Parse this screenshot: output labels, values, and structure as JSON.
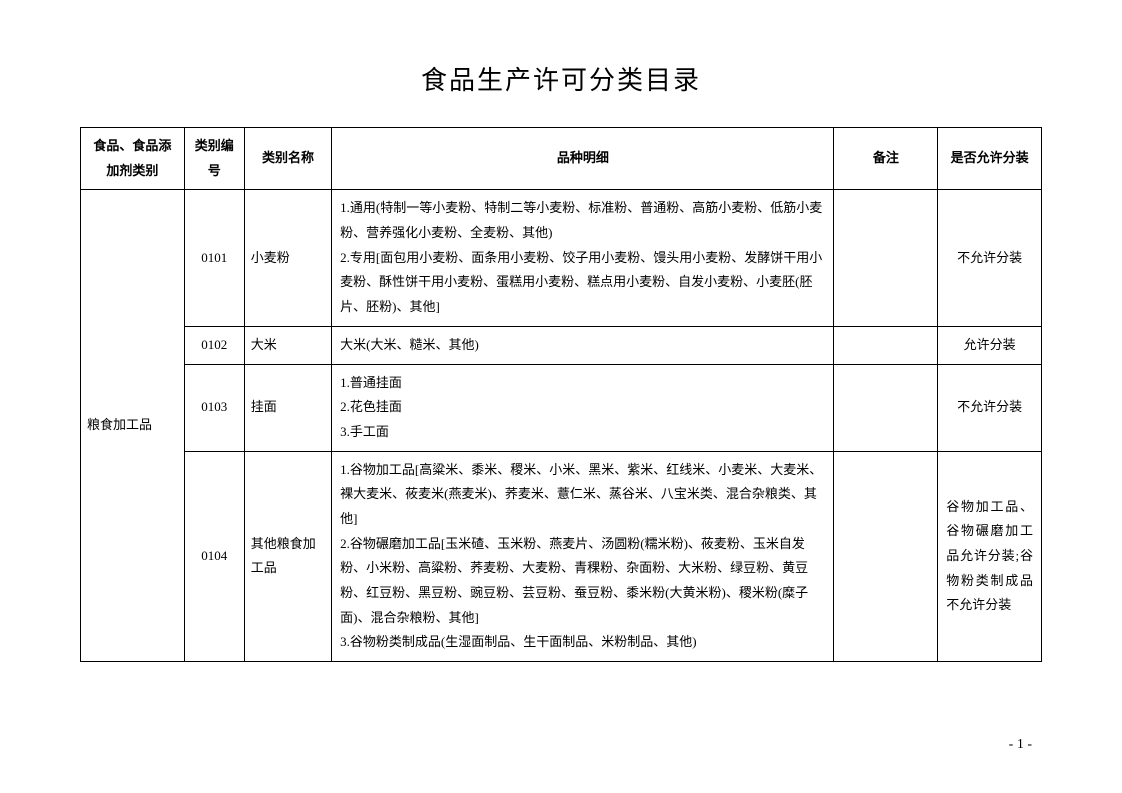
{
  "title": "食品生产许可分类目录",
  "headers": {
    "category": "食品、食品添加剂类别",
    "code": "类别编号",
    "name": "类别名称",
    "detail": "品种明细",
    "remark": "备注",
    "allow": "是否允许分装"
  },
  "category_group": "粮食加工品",
  "rows": [
    {
      "code": "0101",
      "name": "小麦粉",
      "detail": "1.通用(特制一等小麦粉、特制二等小麦粉、标准粉、普通粉、高筋小麦粉、低筋小麦粉、营养强化小麦粉、全麦粉、其他)\n2.专用[面包用小麦粉、面条用小麦粉、饺子用小麦粉、馒头用小麦粉、发酵饼干用小麦粉、酥性饼干用小麦粉、蛋糕用小麦粉、糕点用小麦粉、自发小麦粉、小麦胚(胚片、胚粉)、其他]",
      "remark": "",
      "allow": "不允许分装"
    },
    {
      "code": "0102",
      "name": "大米",
      "detail": "大米(大米、糙米、其他)",
      "remark": "",
      "allow": "允许分装"
    },
    {
      "code": "0103",
      "name": "挂面",
      "detail": "1.普通挂面\n2.花色挂面\n3.手工面",
      "remark": "",
      "allow": "不允许分装"
    },
    {
      "code": "0104",
      "name": "其他粮食加工品",
      "detail": "1.谷物加工品[高粱米、黍米、稷米、小米、黑米、紫米、红线米、小麦米、大麦米、裸大麦米、莜麦米(燕麦米)、荞麦米、薏仁米、蒸谷米、八宝米类、混合杂粮类、其他]\n2.谷物碾磨加工品[玉米碴、玉米粉、燕麦片、汤圆粉(糯米粉)、莜麦粉、玉米自发粉、小米粉、高粱粉、荞麦粉、大麦粉、青稞粉、杂面粉、大米粉、绿豆粉、黄豆粉、红豆粉、黑豆粉、豌豆粉、芸豆粉、蚕豆粉、黍米粉(大黄米粉)、稷米粉(糜子面)、混合杂粮粉、其他]\n3.谷物粉类制成品(生湿面制品、生干面制品、米粉制品、其他)",
      "remark": "",
      "allow": "谷物加工品、谷物碾磨加工品允许分装;谷物粉类制成品不允许分装"
    }
  ],
  "page_number": "- 1 -"
}
